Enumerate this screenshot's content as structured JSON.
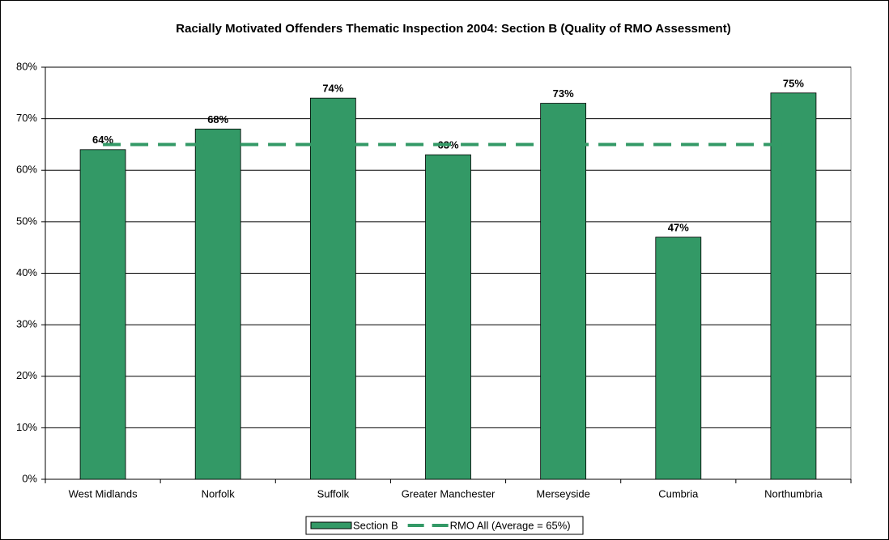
{
  "chart_data": {
    "type": "bar",
    "title": "Racially Motivated Offenders Thematic Inspection 2004: Section B (Quality of RMO Assessment)",
    "categories": [
      "West Midlands",
      "Norfolk",
      "Suffolk",
      "Greater Manchester",
      "Merseyside",
      "Cumbria",
      "Northumbria"
    ],
    "series": [
      {
        "name": "Section B",
        "type": "bar",
        "color": "#339966",
        "values": [
          64,
          68,
          74,
          63,
          73,
          47,
          75
        ],
        "value_labels": [
          "64%",
          "68%",
          "74%",
          "63%",
          "73%",
          "47%",
          "75%"
        ]
      },
      {
        "name": "RMO All (Average = 65%)",
        "type": "line",
        "dashed": true,
        "color": "#339966",
        "values": [
          65,
          65,
          65,
          65,
          65,
          65,
          65
        ]
      }
    ],
    "ylim": [
      0,
      80
    ],
    "yticks": [
      {
        "value": 0,
        "label": "0%"
      },
      {
        "value": 10,
        "label": "10%"
      },
      {
        "value": 20,
        "label": "20%"
      },
      {
        "value": 30,
        "label": "30%"
      },
      {
        "value": 40,
        "label": "40%"
      },
      {
        "value": 50,
        "label": "50%"
      },
      {
        "value": 60,
        "label": "60%"
      },
      {
        "value": 70,
        "label": "70%"
      },
      {
        "value": 80,
        "label": "80%"
      }
    ],
    "grid": true,
    "legend": "bottom"
  }
}
